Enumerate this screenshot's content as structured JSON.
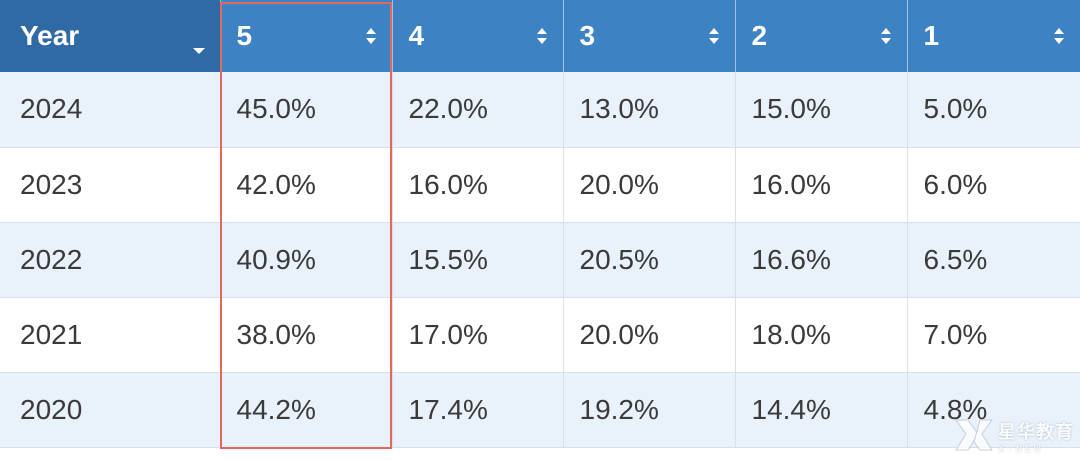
{
  "table": {
    "headers": [
      {
        "label": "Year",
        "control": "dropdown"
      },
      {
        "label": "5",
        "control": "sort"
      },
      {
        "label": "4",
        "control": "sort"
      },
      {
        "label": "3",
        "control": "sort"
      },
      {
        "label": "2",
        "control": "sort"
      },
      {
        "label": "1",
        "control": "sort"
      }
    ],
    "rows": [
      {
        "year": "2024",
        "values": [
          "45.0%",
          "22.0%",
          "13.0%",
          "15.0%",
          "5.0%"
        ]
      },
      {
        "year": "2023",
        "values": [
          "42.0%",
          "16.0%",
          "20.0%",
          "16.0%",
          "6.0%"
        ]
      },
      {
        "year": "2022",
        "values": [
          "40.9%",
          "15.5%",
          "20.5%",
          "16.6%",
          "6.5%"
        ]
      },
      {
        "year": "2021",
        "values": [
          "38.0%",
          "17.0%",
          "20.0%",
          "18.0%",
          "7.0%"
        ]
      },
      {
        "year": "2020",
        "values": [
          "44.2%",
          "17.4%",
          "19.2%",
          "14.4%",
          "4.8%"
        ]
      }
    ],
    "highlighted_column": "5"
  },
  "watermark": {
    "text_cn": "星华教育",
    "text_en": "X-NEW"
  },
  "colors": {
    "header_bg": "#3d82c2",
    "header_year_bg": "#2f6aa6",
    "row_alt_bg": "#e9f1fb",
    "highlight_border": "#e0685c"
  }
}
